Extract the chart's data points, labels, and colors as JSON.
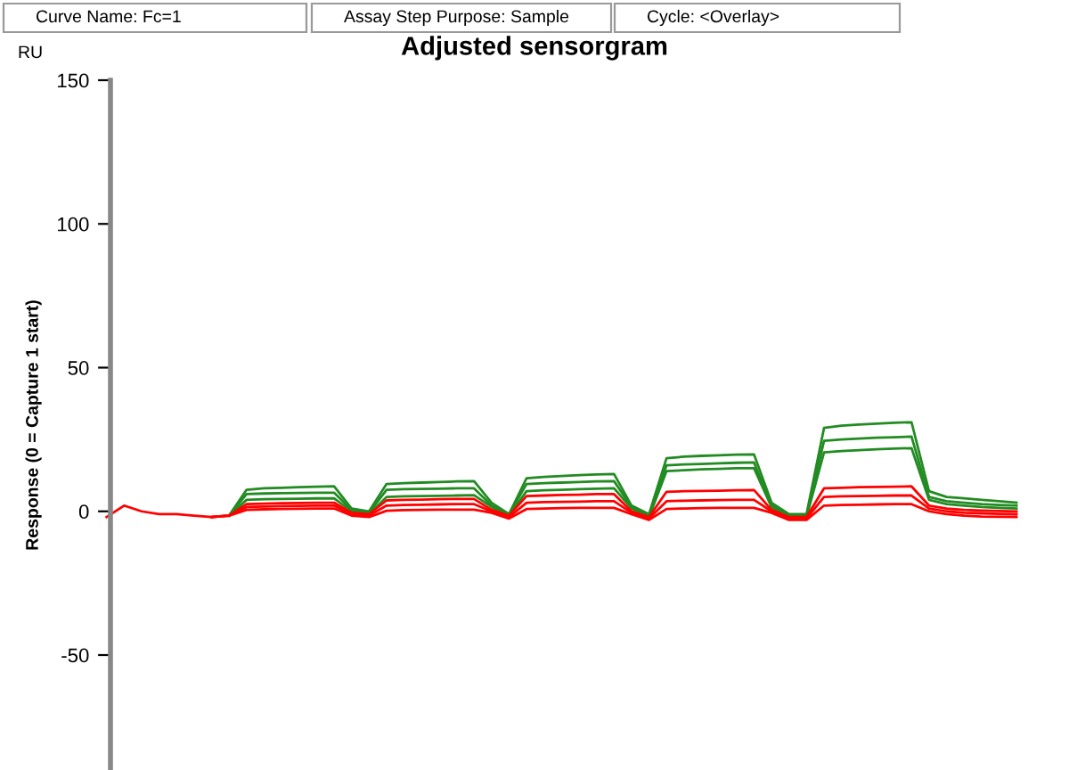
{
  "chart_data": {
    "type": "line",
    "title": "Adjusted sensorgram",
    "ylabel": "Response (0 = Capture 1 start)",
    "annotations": [
      "Curve Name: Fc=1",
      "Assay Step Purpose: Sample",
      "Cycle: <Overlay>",
      "RU"
    ],
    "categories": [
      null,
      null,
      null,
      null,
      null,
      null,
      null,
      null,
      null,
      null,
      null,
      null,
      null,
      null,
      null,
      null,
      null,
      null,
      null,
      null,
      null,
      null,
      null,
      null,
      null,
      null,
      null,
      null,
      null,
      null,
      null,
      null,
      null,
      null,
      null,
      null,
      null,
      null,
      null,
      null,
      null,
      null,
      null,
      null,
      null,
      null,
      null,
      null,
      null,
      null,
      null,
      null,
      null
    ],
    "ylim": [
      -90,
      150
    ],
    "yticks": [
      -50,
      0,
      50,
      100,
      150
    ],
    "grid": false,
    "marker": "none",
    "line_style": "solid",
    "tick_labels": "y",
    "series": [
      {
        "color": "#228b22",
        "values": [
          null,
          null,
          null,
          null,
          null,
          null,
          null,
          -1.5,
          7.5,
          8,
          8.2,
          8.4,
          8.6,
          8.7,
          1,
          0,
          9.5,
          9.8,
          10,
          10.2,
          10.4,
          10.5,
          3,
          -1,
          11.5,
          12,
          12.3,
          12.6,
          12.8,
          13,
          2,
          -1,
          18.5,
          19,
          19.3,
          19.5,
          19.7,
          19.8,
          3,
          -1,
          -1,
          29,
          29.8,
          30.2,
          30.5,
          30.8,
          31,
          7,
          5,
          4.5,
          4,
          3.5,
          3
        ]
      },
      {
        "color": "#228b22",
        "values": [
          null,
          null,
          null,
          null,
          null,
          null,
          null,
          -1.5,
          6,
          6.2,
          6.3,
          6.4,
          6.5,
          6.5,
          0.5,
          -0.5,
          7.5,
          7.7,
          7.8,
          7.9,
          8,
          8,
          2,
          -1,
          9.5,
          9.8,
          10,
          10.2,
          10.4,
          10.5,
          1.5,
          -1.5,
          16,
          16.3,
          16.5,
          16.7,
          16.9,
          17,
          2,
          -1.5,
          -1.5,
          24.5,
          25,
          25.3,
          25.6,
          25.8,
          26,
          5,
          3.5,
          3,
          2.5,
          2.2,
          2
        ]
      },
      {
        "color": "#228b22",
        "values": [
          null,
          null,
          null,
          null,
          null,
          null,
          null,
          -1.5,
          4,
          4.2,
          4.3,
          4.4,
          4.5,
          4.5,
          0,
          -1,
          5,
          5.2,
          5.3,
          5.4,
          5.5,
          5.6,
          1.5,
          -1.5,
          7,
          7.3,
          7.5,
          7.7,
          7.9,
          8,
          1,
          -2,
          14,
          14.3,
          14.6,
          14.8,
          15,
          15,
          1.5,
          -2,
          -2,
          20.5,
          21,
          21.3,
          21.6,
          21.8,
          22,
          4,
          2.5,
          2,
          1.5,
          1.2,
          1
        ]
      },
      {
        "color": "#ff0000",
        "values": [
          null,
          null,
          null,
          null,
          null,
          null,
          -2,
          -1.5,
          2.5,
          2.7,
          2.8,
          2.9,
          3,
          3,
          -0.5,
          -1,
          3.8,
          4,
          4.1,
          4.2,
          4.3,
          4.3,
          0.5,
          -1.5,
          5.3,
          5.5,
          5.7,
          5.8,
          6,
          6,
          0,
          -2,
          6.8,
          7,
          7.1,
          7.2,
          7.3,
          7.4,
          0.5,
          -2,
          -2,
          8,
          8.2,
          8.4,
          8.5,
          8.6,
          8.7,
          2,
          1,
          0.5,
          0.3,
          0.1,
          0
        ]
      },
      {
        "color": "#ff0000",
        "values": [
          null,
          null,
          null,
          null,
          null,
          null,
          -2,
          -1.5,
          1.5,
          1.7,
          1.8,
          1.9,
          2,
          2,
          -1,
          -1.5,
          2,
          2.2,
          2.3,
          2.4,
          2.5,
          2.5,
          0,
          -2,
          3,
          3.2,
          3.3,
          3.4,
          3.5,
          3.5,
          -0.5,
          -2.5,
          3.5,
          3.7,
          3.8,
          3.9,
          4,
          4,
          0,
          -2.5,
          -2.5,
          5,
          5.2,
          5.3,
          5.4,
          5.5,
          5.5,
          1,
          0,
          -0.5,
          -0.7,
          -0.9,
          -1
        ]
      },
      {
        "color": "#ff0000",
        "values": [
          -2,
          2,
          0,
          -1,
          -1,
          -1.5,
          -2,
          -1.5,
          0.5,
          0.7,
          0.8,
          0.9,
          1,
          1,
          -1.5,
          -2,
          0.2,
          0.4,
          0.5,
          0.6,
          0.6,
          0.6,
          -0.5,
          -2.5,
          0.8,
          1,
          1.1,
          1.2,
          1.2,
          1.2,
          -1,
          -3,
          0.8,
          1,
          1.1,
          1.2,
          1.2,
          1.2,
          -0.5,
          -3,
          -3,
          2,
          2.2,
          2.3,
          2.4,
          2.5,
          2.5,
          0,
          -1,
          -1.5,
          -1.8,
          -1.9,
          -2
        ]
      }
    ]
  }
}
